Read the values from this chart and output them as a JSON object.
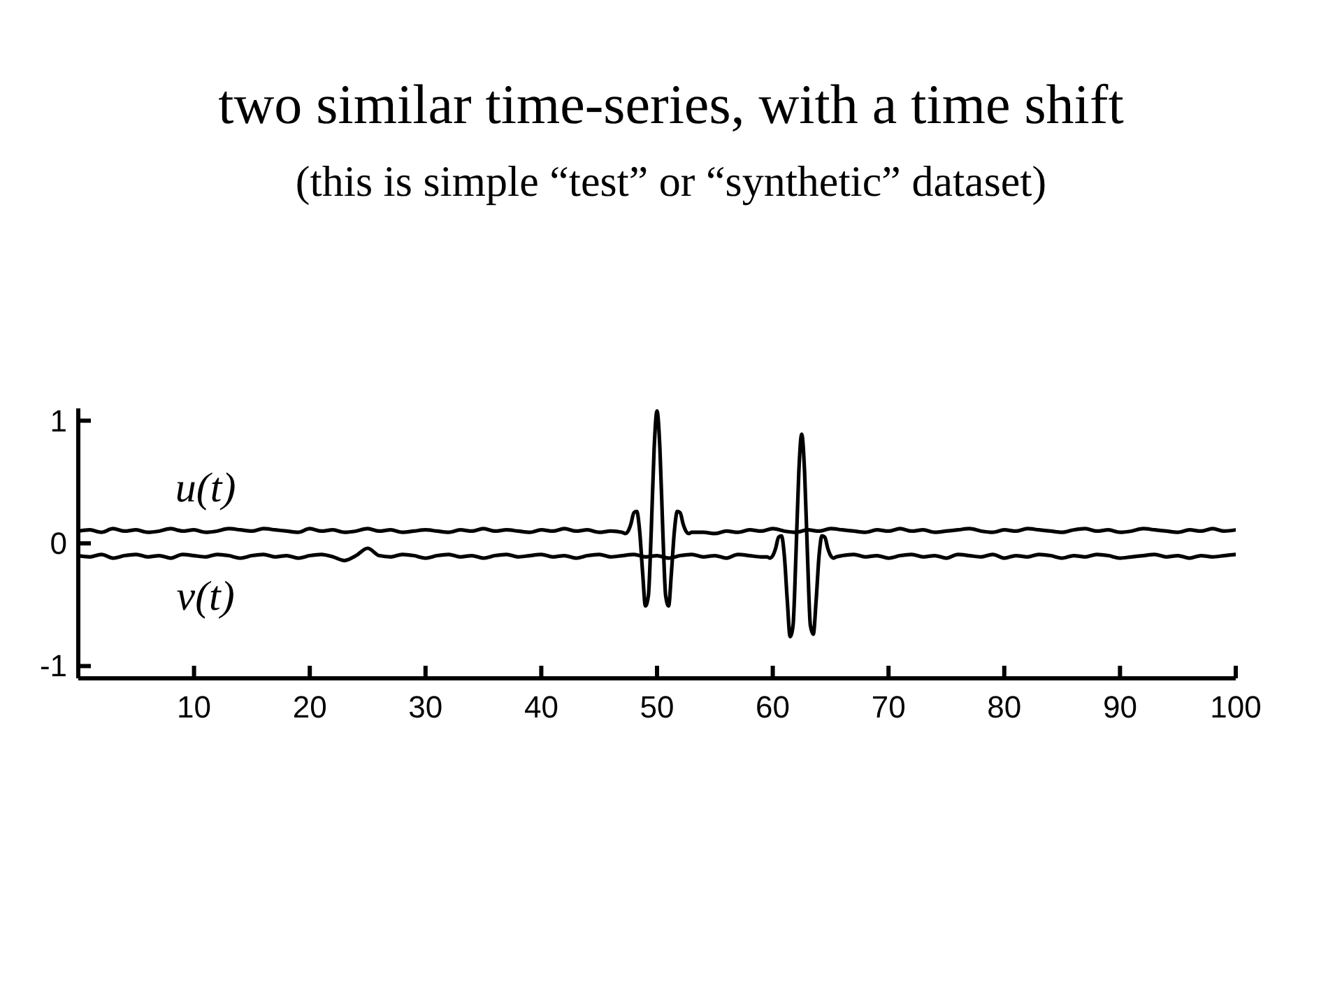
{
  "chart_data": {
    "type": "line",
    "title": "two similar time-series, with a time shift",
    "subtitle": "(this is simple “test” or “synthetic” dataset)",
    "line_style": "solid",
    "xlim": [
      0,
      100
    ],
    "xticks": [
      10,
      20,
      30,
      40,
      50,
      60,
      70,
      80,
      90,
      100
    ],
    "ylim": [
      -1.1,
      1.1
    ],
    "yticks": [
      -1,
      0,
      1
    ],
    "series": [
      {
        "name": "u(t)",
        "color": "#000000",
        "x": [
          0,
          1,
          2,
          3,
          4,
          5,
          6,
          7,
          8,
          9,
          10,
          11,
          12,
          13,
          14,
          15,
          16,
          17,
          18,
          19,
          20,
          21,
          22,
          23,
          24,
          25,
          26,
          27,
          28,
          29,
          30,
          31,
          32,
          33,
          34,
          35,
          36,
          37,
          38,
          39,
          40,
          41,
          42,
          43,
          44,
          45,
          46,
          47,
          47.25,
          47.5,
          47.75,
          48,
          48.25,
          48.5,
          48.75,
          49,
          49.25,
          49.5,
          49.75,
          50,
          50.25,
          50.5,
          50.75,
          51,
          51.25,
          51.5,
          51.75,
          52,
          52.25,
          52.5,
          52.75,
          53,
          54,
          55,
          56,
          57,
          58,
          59,
          60,
          61,
          62,
          63,
          64,
          65,
          66,
          67,
          68,
          69,
          70,
          71,
          72,
          73,
          74,
          75,
          76,
          77,
          78,
          79,
          80,
          81,
          82,
          83,
          84,
          85,
          86,
          87,
          88,
          89,
          90,
          91,
          92,
          93,
          94,
          95,
          96,
          97,
          98,
          99,
          100
        ],
        "values": [
          0.1,
          0.11,
          0.09,
          0.12,
          0.1,
          0.11,
          0.09,
          0.1,
          0.12,
          0.1,
          0.11,
          0.09,
          0.1,
          0.12,
          0.11,
          0.1,
          0.12,
          0.11,
          0.1,
          0.09,
          0.12,
          0.1,
          0.11,
          0.09,
          0.1,
          0.12,
          0.1,
          0.11,
          0.09,
          0.1,
          0.11,
          0.1,
          0.09,
          0.11,
          0.1,
          0.12,
          0.1,
          0.11,
          0.1,
          0.09,
          0.11,
          0.1,
          0.12,
          0.1,
          0.11,
          0.09,
          0.1,
          0.09,
          0.08,
          0.1,
          0.16,
          0.25,
          0.26,
          0.1,
          -0.23,
          -0.51,
          -0.43,
          0.1,
          0.77,
          1.08,
          0.77,
          0.1,
          -0.43,
          -0.51,
          -0.23,
          0.1,
          0.26,
          0.25,
          0.16,
          0.1,
          0.08,
          0.09,
          0.09,
          0.08,
          0.1,
          0.09,
          0.11,
          0.1,
          0.12,
          0.1,
          0.09,
          0.11,
          0.1,
          0.12,
          0.11,
          0.1,
          0.09,
          0.11,
          0.1,
          0.12,
          0.1,
          0.11,
          0.09,
          0.1,
          0.11,
          0.12,
          0.1,
          0.09,
          0.11,
          0.1,
          0.12,
          0.11,
          0.1,
          0.09,
          0.11,
          0.12,
          0.1,
          0.11,
          0.09,
          0.1,
          0.12,
          0.11,
          0.1,
          0.09,
          0.11,
          0.1,
          0.12,
          0.1,
          0.11
        ]
      },
      {
        "name": "v(t)",
        "color": "#000000",
        "x": [
          0,
          1,
          2,
          3,
          4,
          5,
          6,
          7,
          8,
          9,
          10,
          11,
          12,
          13,
          14,
          15,
          16,
          17,
          18,
          19,
          20,
          21,
          22,
          23,
          24,
          25,
          26,
          27,
          28,
          29,
          30,
          31,
          32,
          33,
          34,
          35,
          36,
          37,
          38,
          39,
          40,
          41,
          42,
          43,
          44,
          45,
          46,
          47,
          48,
          49,
          50,
          51,
          52,
          53,
          54,
          55,
          56,
          57,
          58,
          59,
          59.5,
          59.75,
          60,
          60.25,
          60.5,
          60.75,
          61,
          61.25,
          61.5,
          61.75,
          62,
          62.25,
          62.5,
          62.75,
          63,
          63.25,
          63.5,
          63.75,
          64,
          64.25,
          64.5,
          64.75,
          65,
          65.25,
          65.5,
          66,
          67,
          68,
          69,
          70,
          71,
          72,
          73,
          74,
          75,
          76,
          77,
          78,
          79,
          80,
          81,
          82,
          83,
          84,
          85,
          86,
          87,
          88,
          89,
          90,
          91,
          92,
          93,
          94,
          95,
          96,
          97,
          98,
          99,
          100
        ],
        "values": [
          -0.1,
          -0.11,
          -0.09,
          -0.12,
          -0.1,
          -0.09,
          -0.11,
          -0.1,
          -0.12,
          -0.09,
          -0.1,
          -0.11,
          -0.09,
          -0.1,
          -0.12,
          -0.1,
          -0.09,
          -0.11,
          -0.1,
          -0.12,
          -0.1,
          -0.09,
          -0.11,
          -0.14,
          -0.1,
          -0.04,
          -0.1,
          -0.11,
          -0.09,
          -0.1,
          -0.12,
          -0.1,
          -0.09,
          -0.11,
          -0.1,
          -0.12,
          -0.1,
          -0.09,
          -0.11,
          -0.1,
          -0.09,
          -0.11,
          -0.1,
          -0.12,
          -0.1,
          -0.09,
          -0.11,
          -0.1,
          -0.09,
          -0.11,
          -0.1,
          -0.12,
          -0.1,
          -0.09,
          -0.11,
          -0.1,
          -0.12,
          -0.09,
          -0.1,
          -0.11,
          -0.11,
          -0.12,
          -0.1,
          -0.04,
          0.05,
          0.06,
          -0.1,
          -0.46,
          -0.76,
          -0.67,
          -0.1,
          0.58,
          0.89,
          0.58,
          -0.1,
          -0.67,
          -0.74,
          -0.46,
          -0.1,
          0.06,
          0.05,
          -0.04,
          -0.1,
          -0.12,
          -0.11,
          -0.1,
          -0.09,
          -0.11,
          -0.1,
          -0.12,
          -0.1,
          -0.09,
          -0.11,
          -0.1,
          -0.12,
          -0.09,
          -0.1,
          -0.11,
          -0.09,
          -0.12,
          -0.1,
          -0.11,
          -0.09,
          -0.1,
          -0.12,
          -0.1,
          -0.11,
          -0.09,
          -0.1,
          -0.12,
          -0.11,
          -0.1,
          -0.09,
          -0.11,
          -0.1,
          -0.12,
          -0.1,
          -0.11,
          -0.1,
          -0.09
        ]
      }
    ]
  }
}
